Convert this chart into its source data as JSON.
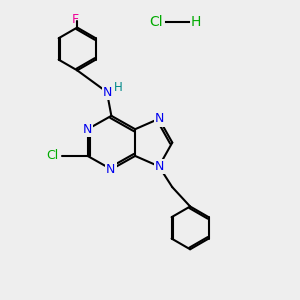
{
  "bg_color": "#eeeeee",
  "bond_color": "#000000",
  "N_color": "#0000ee",
  "Cl_color": "#00aa00",
  "F_color": "#ee0099",
  "NH_color": "#008888",
  "HCl_color": "#00aa00",
  "lw": 1.5,
  "figsize": [
    3.0,
    3.0
  ],
  "dpi": 100,
  "xlim": [
    0,
    10
  ],
  "ylim": [
    0,
    10
  ]
}
